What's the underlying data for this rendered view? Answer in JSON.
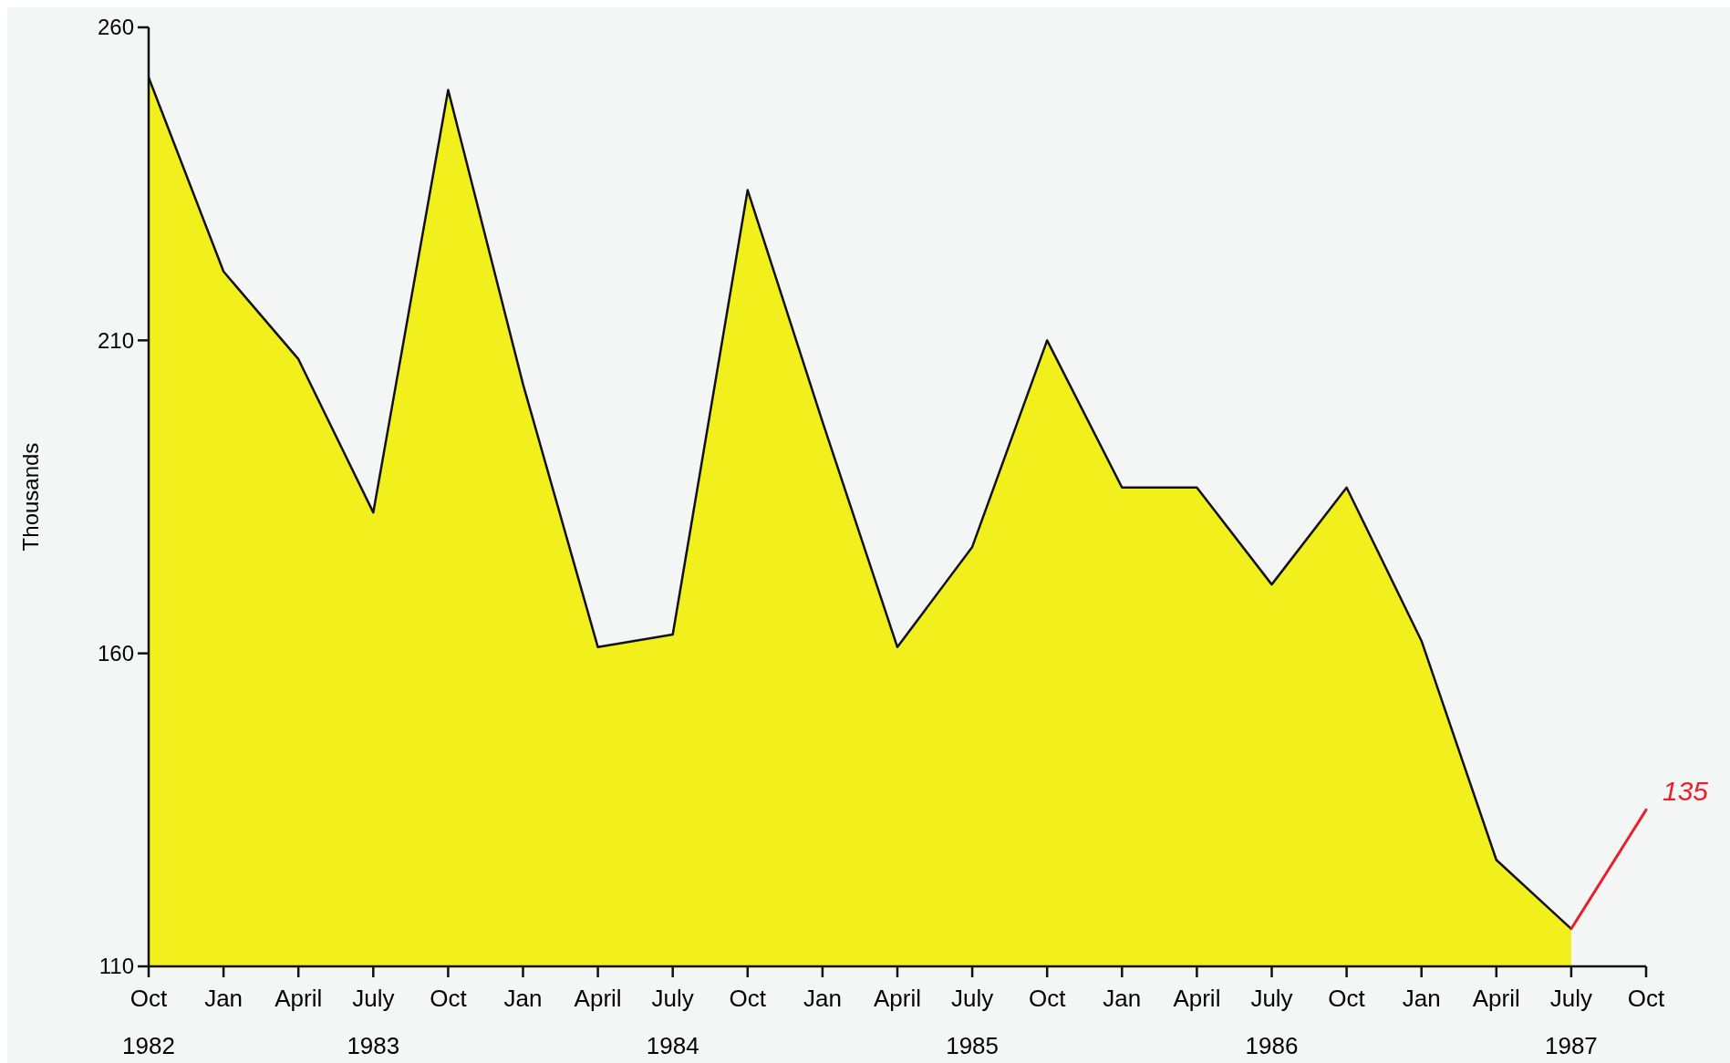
{
  "chart_data": {
    "type": "area",
    "ylabel": "Thousands",
    "categories": [
      "Oct\n1982",
      "Jan",
      "April",
      "July\n1983",
      "Oct",
      "Jan",
      "April",
      "July\n1984",
      "Oct",
      "Jan",
      "April",
      "July\n1985",
      "Oct",
      "Jan",
      "April",
      "July\n1986",
      "Oct",
      "Jan",
      "April",
      "July\n1987",
      "Oct"
    ],
    "series": [
      {
        "color": "#f2f01c",
        "values": [
          252,
          221,
          207,
          182.5,
          250,
          203,
          161,
          163,
          234,
          197,
          161,
          177,
          210,
          186.5,
          186.5,
          171,
          186.5,
          162,
          127,
          116,
          null
        ]
      },
      {
        "type": "line",
        "color": "#e8202a",
        "values": [
          null,
          null,
          null,
          null,
          null,
          null,
          null,
          null,
          null,
          null,
          null,
          null,
          null,
          null,
          null,
          null,
          null,
          null,
          null,
          116,
          135
        ]
      }
    ],
    "annotations": [
      "135"
    ],
    "ylim": [
      110,
      260
    ],
    "yticks": [
      110,
      160,
      210,
      260
    ],
    "grid": false
  }
}
